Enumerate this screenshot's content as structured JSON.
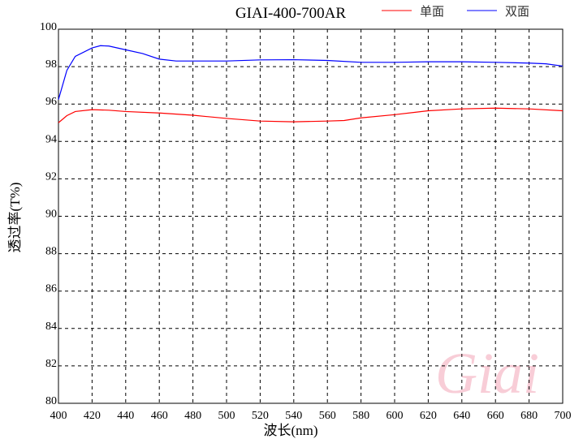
{
  "chart_data": {
    "type": "line",
    "title": "GIAI-400-700AR",
    "xlabel": "波长(nm)",
    "ylabel": "透过率(T%)",
    "xlim": [
      400,
      700
    ],
    "ylim": [
      80,
      100
    ],
    "xticks": [
      400,
      420,
      440,
      460,
      480,
      500,
      520,
      540,
      560,
      580,
      600,
      620,
      640,
      660,
      680,
      700
    ],
    "yticks": [
      80,
      82,
      84,
      86,
      88,
      90,
      92,
      94,
      96,
      98,
      100
    ],
    "grid": true,
    "legend_position": "top-right",
    "watermark": "Giai",
    "series": [
      {
        "name": "单面",
        "color": "#ff0000",
        "x": [
          400,
          405,
          410,
          420,
          430,
          440,
          460,
          480,
          500,
          520,
          540,
          560,
          570,
          580,
          600,
          620,
          640,
          660,
          680,
          700
        ],
        "y": [
          95.0,
          95.38,
          95.6,
          95.7,
          95.67,
          95.6,
          95.52,
          95.4,
          95.23,
          95.09,
          95.05,
          95.09,
          95.12,
          95.26,
          95.43,
          95.64,
          95.74,
          95.78,
          95.74,
          95.64
        ]
      },
      {
        "name": "双面",
        "color": "#0000ff",
        "x": [
          400,
          405,
          410,
          420,
          425,
          430,
          440,
          450,
          460,
          470,
          480,
          500,
          520,
          540,
          560,
          580,
          600,
          620,
          640,
          660,
          680,
          690,
          700
        ],
        "y": [
          96.24,
          97.8,
          98.55,
          99.0,
          99.12,
          99.1,
          98.9,
          98.7,
          98.4,
          98.3,
          98.3,
          98.3,
          98.36,
          98.37,
          98.33,
          98.23,
          98.23,
          98.26,
          98.26,
          98.23,
          98.19,
          98.15,
          98.03
        ]
      }
    ]
  }
}
